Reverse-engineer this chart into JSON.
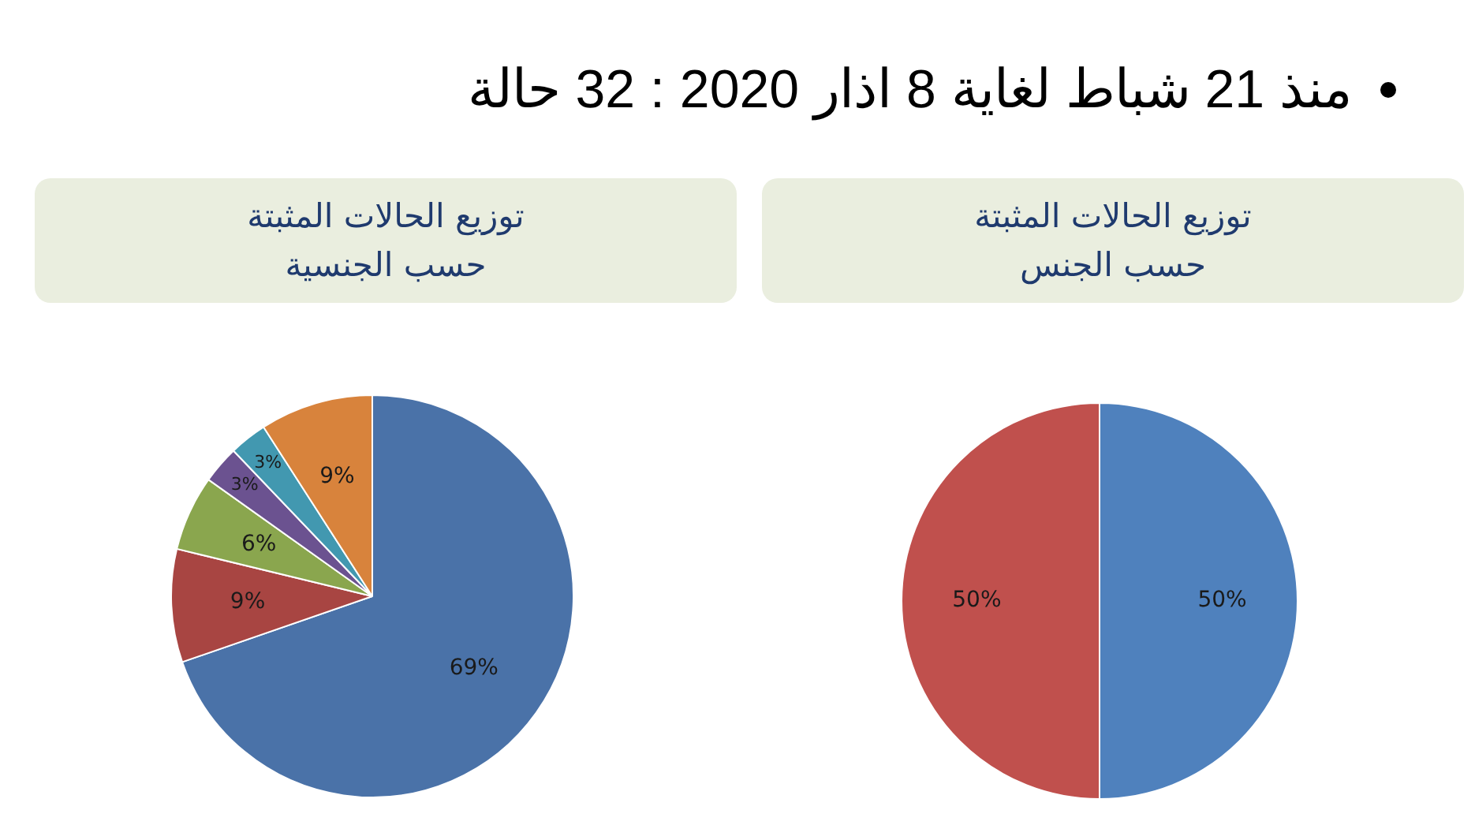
{
  "chart_data": [
    {
      "type": "other",
      "annotations": [
        "منذ 21 شباط لغاية 8 اذار 2020 : 32 حالة"
      ]
    },
    {
      "type": "pie",
      "title": "توزيع الحالات المثبتة\nحسب الجنس",
      "categories": [
        null,
        null
      ],
      "values": [
        50,
        50
      ],
      "colors": [
        "#4f81bd",
        "#c0504d"
      ],
      "value_labels": [
        "50%",
        "50%"
      ]
    },
    {
      "type": "pie",
      "title": "توزيع الحالات المثبتة\nحسب الجنسية",
      "categories": [
        null,
        null,
        null,
        null,
        null,
        null
      ],
      "values": [
        69,
        9,
        6,
        3,
        3,
        9
      ],
      "colors": [
        "#4a72a8",
        "#a84542",
        "#8aa64e",
        "#6b5290",
        "#4298b0",
        "#d8833c"
      ],
      "value_labels": [
        "69%",
        "9%",
        "6%",
        "3%",
        "3%",
        "9%"
      ]
    }
  ]
}
